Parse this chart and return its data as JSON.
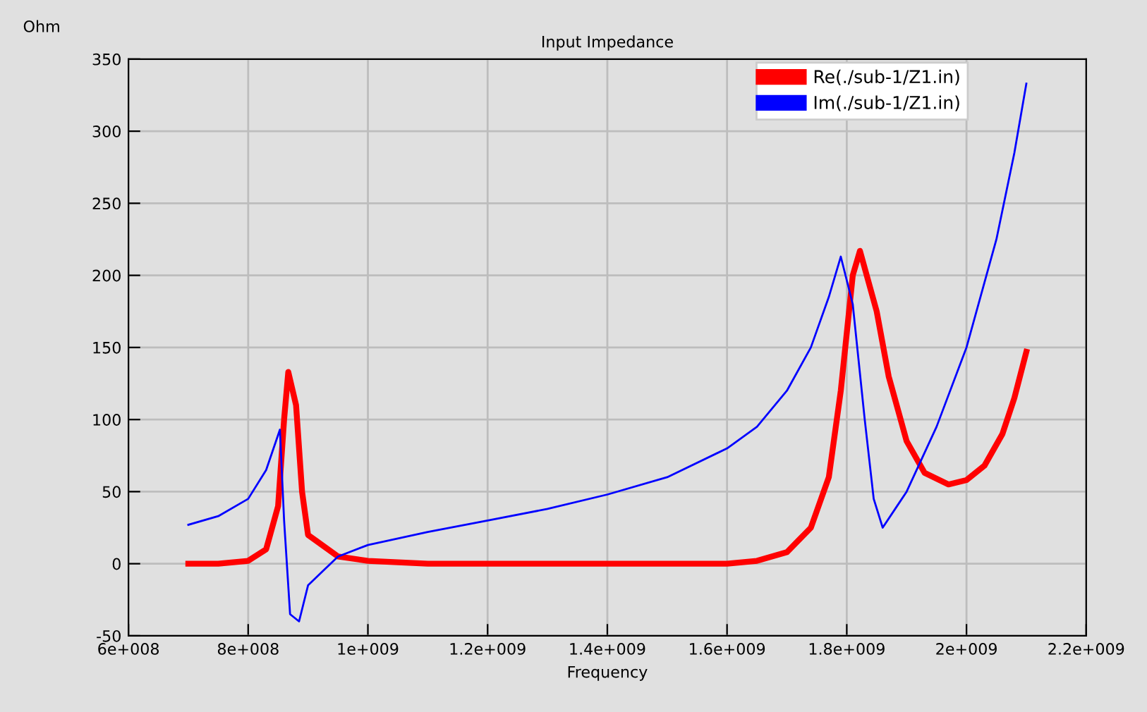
{
  "chart_data": {
    "type": "line",
    "title": "Input Impedance",
    "xlabel": "Frequency",
    "ylabel": "Ohm",
    "xlim": [
      600000000,
      2200000000
    ],
    "xticks": [
      {
        "value": 600000000,
        "label": "6e+008"
      },
      {
        "value": 800000000,
        "label": "8e+008"
      },
      {
        "value": 1000000000,
        "label": "1e+009"
      },
      {
        "value": 1200000000,
        "label": "1.2e+009"
      },
      {
        "value": 1400000000,
        "label": "1.4e+009"
      },
      {
        "value": 1600000000,
        "label": "1.6e+009"
      },
      {
        "value": 1800000000,
        "label": "1.8e+009"
      },
      {
        "value": 2000000000,
        "label": "2e+009"
      },
      {
        "value": 2200000000,
        "label": "2.2e+009"
      }
    ],
    "ylim": [
      -50,
      350
    ],
    "yticks": [
      -50,
      0,
      50,
      100,
      150,
      200,
      250,
      300,
      350
    ],
    "grid": true,
    "legend": "top right",
    "series": [
      {
        "name": "Re(./sub-1/Z1.in)",
        "color": "#ff0000",
        "x": [
          700000000,
          750000000,
          800000000,
          830000000,
          850000000,
          860000000,
          867000000,
          880000000,
          890000000,
          900000000,
          950000000,
          1000000000,
          1100000000,
          1600000000,
          1650000000,
          1700000000,
          1740000000,
          1770000000,
          1790000000,
          1810000000,
          1822000000,
          1850000000,
          1870000000,
          1900000000,
          1930000000,
          1970000000,
          2000000000,
          2030000000,
          2060000000,
          2080000000,
          2100000000
        ],
        "values": [
          0,
          0,
          2,
          10,
          40,
          100,
          133,
          110,
          50,
          20,
          5,
          2,
          0,
          0,
          2,
          8,
          25,
          60,
          120,
          200,
          217,
          175,
          130,
          85,
          63,
          55,
          58,
          68,
          90,
          115,
          147
        ]
      },
      {
        "name": "Im(./sub-1/Z1.in)",
        "color": "#0000ff",
        "x": [
          700000000,
          750000000,
          800000000,
          830000000,
          853000000,
          860000000,
          870000000,
          885000000,
          900000000,
          950000000,
          1000000000,
          1100000000,
          1200000000,
          1300000000,
          1400000000,
          1500000000,
          1600000000,
          1650000000,
          1700000000,
          1740000000,
          1770000000,
          1790000000,
          1810000000,
          1830000000,
          1845000000,
          1860000000,
          1900000000,
          1950000000,
          2000000000,
          2050000000,
          2080000000,
          2100000000
        ],
        "values": [
          27,
          33,
          45,
          65,
          93,
          30,
          -35,
          -40,
          -15,
          5,
          13,
          22,
          30,
          38,
          48,
          60,
          80,
          95,
          120,
          150,
          185,
          213,
          180,
          100,
          45,
          25,
          50,
          95,
          150,
          225,
          285,
          333
        ]
      }
    ]
  }
}
